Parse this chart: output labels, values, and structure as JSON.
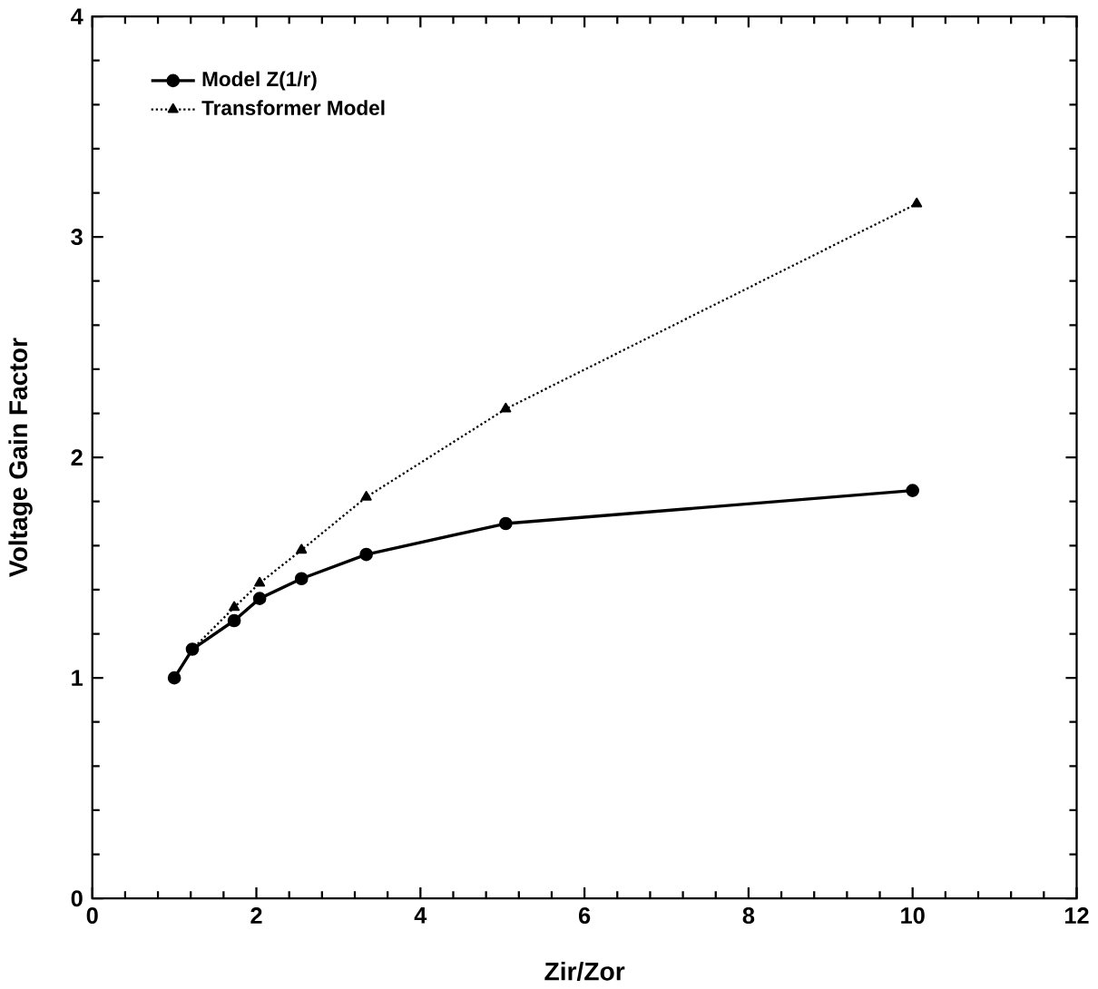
{
  "chart_data": {
    "type": "line",
    "xlabel": "Zir/Zor",
    "ylabel": "Voltage  Gain  Factor",
    "xlim": [
      0,
      12
    ],
    "ylim": [
      0,
      4
    ],
    "xticks": [
      0,
      2,
      4,
      6,
      8,
      10,
      12
    ],
    "yticks": [
      0,
      1,
      2,
      3,
      4
    ],
    "grid": false,
    "legend": "top left",
    "series": [
      {
        "name": "Model Z(1/r)",
        "color": "#000000",
        "marker": "circle",
        "line_style": "solid",
        "x": [
          1,
          1.22,
          1.73,
          2.04,
          2.55,
          3.34,
          5.04,
          10
        ],
        "values": [
          1,
          1.13,
          1.26,
          1.36,
          1.45,
          1.56,
          1.7,
          1.85
        ]
      },
      {
        "name": "Transformer Model",
        "color": "#000000",
        "marker": "triangle",
        "line_style": "dotted",
        "x": [
          1,
          1.22,
          1.73,
          2.04,
          2.55,
          3.34,
          5.04,
          10.05
        ],
        "values": [
          1,
          1.13,
          1.32,
          1.43,
          1.58,
          1.82,
          2.22,
          3.15
        ]
      }
    ]
  }
}
